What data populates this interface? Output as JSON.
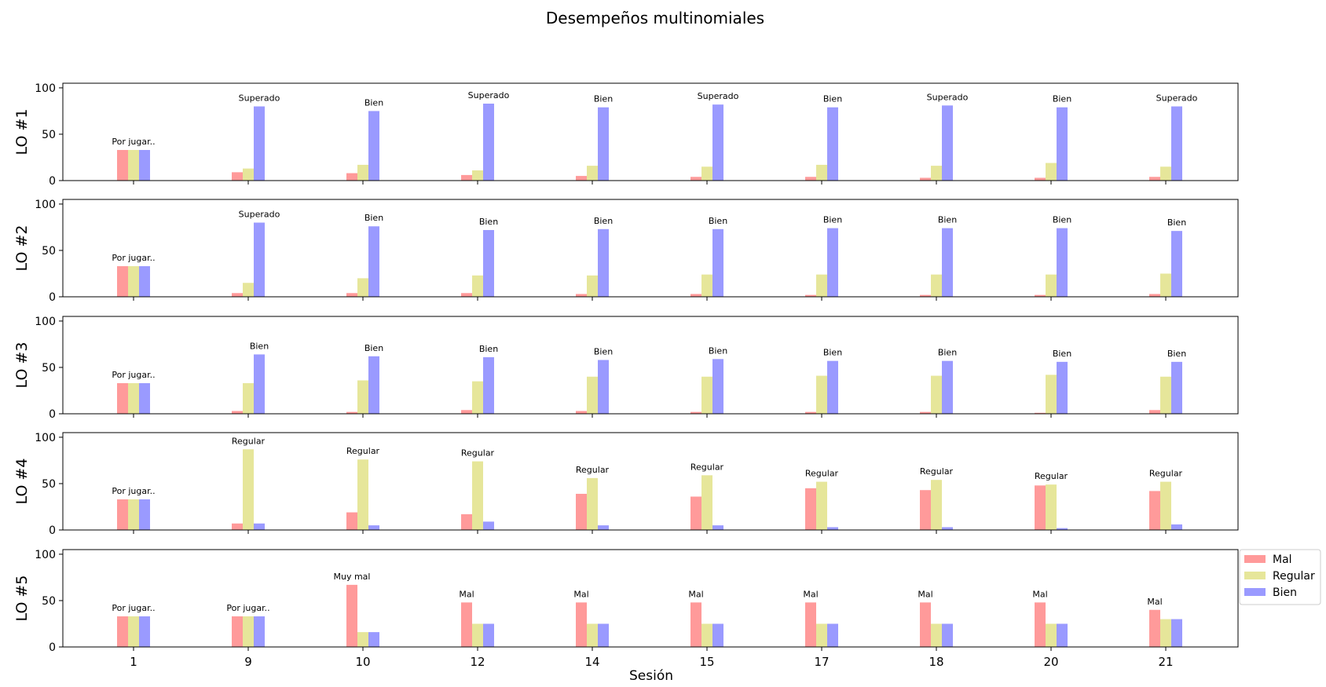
{
  "chart_data": {
    "type": "bar",
    "title": "Desempeños multinomiales",
    "xlabel": "Sesión",
    "categories": [
      "1",
      "9",
      "10",
      "12",
      "14",
      "15",
      "17",
      "18",
      "20",
      "21"
    ],
    "ylim": [
      0,
      105
    ],
    "yticks": [
      0,
      50,
      100
    ],
    "grid": false,
    "legend": {
      "placement": "right",
      "entries": [
        "Mal",
        "Regular",
        "Bien"
      ]
    },
    "colors": {
      "Mal": "#ff9a9a",
      "Regular": "#e6e69a",
      "Bien": "#9a9aff"
    },
    "panels": [
      {
        "ylabel": "LO #1",
        "series": [
          {
            "name": "Mal",
            "values": [
              33,
              9,
              8,
              6,
              5,
              4,
              4,
              3,
              3,
              4
            ]
          },
          {
            "name": "Regular",
            "values": [
              33,
              13,
              17,
              11,
              16,
              15,
              17,
              16,
              19,
              15
            ]
          },
          {
            "name": "Bien",
            "values": [
              33,
              80,
              75,
              83,
              79,
              82,
              79,
              81,
              79,
              80
            ]
          }
        ],
        "annotations": [
          "Por jugar..",
          "Superado",
          "Bien",
          "Superado",
          "Bien",
          "Superado",
          "Bien",
          "Superado",
          "Bien",
          "Superado"
        ]
      },
      {
        "ylabel": "LO #2",
        "series": [
          {
            "name": "Mal",
            "values": [
              33,
              4,
              4,
              4,
              3,
              3,
              2,
              2,
              2,
              3
            ]
          },
          {
            "name": "Regular",
            "values": [
              33,
              15,
              20,
              23,
              23,
              24,
              24,
              24,
              24,
              25
            ]
          },
          {
            "name": "Bien",
            "values": [
              33,
              80,
              76,
              72,
              73,
              73,
              74,
              74,
              74,
              71
            ]
          }
        ],
        "annotations": [
          "Por jugar..",
          "Superado",
          "Bien",
          "Bien",
          "Bien",
          "Bien",
          "Bien",
          "Bien",
          "Bien",
          "Bien"
        ]
      },
      {
        "ylabel": "LO #3",
        "series": [
          {
            "name": "Mal",
            "values": [
              33,
              3,
              2,
              4,
              3,
              2,
              2,
              2,
              1,
              4
            ]
          },
          {
            "name": "Regular",
            "values": [
              33,
              33,
              36,
              35,
              40,
              40,
              41,
              41,
              42,
              40
            ]
          },
          {
            "name": "Bien",
            "values": [
              33,
              64,
              62,
              61,
              58,
              59,
              57,
              57,
              56,
              56
            ]
          }
        ],
        "annotations": [
          "Por jugar..",
          "Bien",
          "Bien",
          "Bien",
          "Bien",
          "Bien",
          "Bien",
          "Bien",
          "Bien",
          "Bien"
        ]
      },
      {
        "ylabel": "LO #4",
        "series": [
          {
            "name": "Mal",
            "values": [
              33,
              7,
              19,
              17,
              39,
              36,
              45,
              43,
              48,
              42
            ]
          },
          {
            "name": "Regular",
            "values": [
              33,
              87,
              76,
              74,
              56,
              59,
              52,
              54,
              49,
              52
            ]
          },
          {
            "name": "Bien",
            "values": [
              33,
              7,
              5,
              9,
              5,
              5,
              3,
              3,
              2,
              6
            ]
          }
        ],
        "annotations": [
          "Por jugar..",
          "Regular",
          "Regular",
          "Regular",
          "Regular",
          "Regular",
          "Regular",
          "Regular",
          "Regular",
          "Regular"
        ]
      },
      {
        "ylabel": "LO #5",
        "series": [
          {
            "name": "Mal",
            "values": [
              33,
              33,
              67,
              48,
              48,
              48,
              48,
              48,
              48,
              40
            ]
          },
          {
            "name": "Regular",
            "values": [
              33,
              33,
              16,
              25,
              25,
              25,
              25,
              25,
              25,
              30
            ]
          },
          {
            "name": "Bien",
            "values": [
              33,
              33,
              16,
              25,
              25,
              25,
              25,
              25,
              25,
              30
            ]
          }
        ],
        "annotations": [
          "Por jugar..",
          "Por jugar..",
          "Muy mal",
          "Mal",
          "Mal",
          "Mal",
          "Mal",
          "Mal",
          "Mal",
          "Mal"
        ]
      }
    ]
  }
}
